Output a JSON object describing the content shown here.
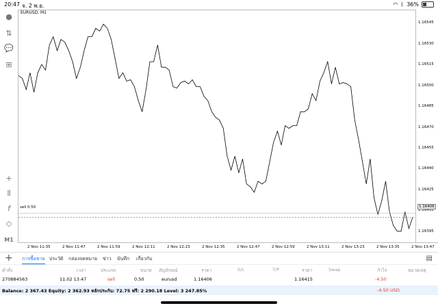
{
  "status": {
    "time": "20:47",
    "date": "จ. 2 พ.ย.",
    "battery": "36%"
  },
  "chart": {
    "symbol": "EURUSD, M1",
    "sell_label": "sell 0.50",
    "current_price": "1.16406"
  },
  "chart_data": {
    "type": "line",
    "x_labels": [
      "2 Nov 11:35",
      "2 Nov 11:47",
      "2 Nov 11:59",
      "2 Nov 12:11",
      "2 Nov 12:23",
      "2 Nov 12:35",
      "2 Nov 12:47",
      "2 Nov 12:59",
      "2 Nov 13:11",
      "2 Nov 13:23",
      "2 Nov 13:35",
      "2 Nov 13:47"
    ],
    "y_ticks": [
      "1.16545",
      "1.16530",
      "1.16515",
      "1.16500",
      "1.16485",
      "1.16470",
      "1.16455",
      "1.16440",
      "1.16425",
      "1.16410",
      "1.16395"
    ],
    "ylim": [
      1.16388,
      1.16555
    ],
    "values": [
      1.16508,
      1.16506,
      1.16498,
      1.1651,
      1.16496,
      1.1651,
      1.16516,
      1.16512,
      1.1653,
      1.16536,
      1.16526,
      1.16534,
      1.16532,
      1.16526,
      1.16518,
      1.16506,
      1.16514,
      1.16526,
      1.16536,
      1.16536,
      1.16542,
      1.1654,
      1.16545,
      1.16542,
      1.16534,
      1.1652,
      1.16506,
      1.1651,
      1.16504,
      1.16505,
      1.165,
      1.1649,
      1.16482,
      1.16498,
      1.16518,
      1.16518,
      1.1653,
      1.16514,
      1.16514,
      1.16512,
      1.165,
      1.16499,
      1.16503,
      1.16504,
      1.16502,
      1.16505,
      1.165,
      1.165,
      1.16493,
      1.1649,
      1.16482,
      1.16478,
      1.16476,
      1.1647,
      1.1645,
      1.1644,
      1.1645,
      1.16438,
      1.16448,
      1.1643,
      1.16428,
      1.16424,
      1.16432,
      1.1643,
      1.16432,
      1.16446,
      1.1646,
      1.16468,
      1.16458,
      1.16472,
      1.1647,
      1.16472,
      1.16472,
      1.16482,
      1.16482,
      1.16484,
      1.16495,
      1.1649,
      1.16504,
      1.1651,
      1.16518,
      1.16502,
      1.16514,
      1.16502,
      1.16503,
      1.16502,
      1.165,
      1.16476,
      1.16462,
      1.16446,
      1.1643,
      1.16448,
      1.1642,
      1.16408,
      1.16418,
      1.16432,
      1.1641,
      1.164,
      1.16396,
      1.16396,
      1.1641,
      1.16398,
      1.16406
    ]
  },
  "tabs": [
    {
      "label": "การซื้อขาย",
      "active": true
    },
    {
      "label": "ประวัติ"
    },
    {
      "label": "กล่องจดหมาย"
    },
    {
      "label": "ข่าว"
    },
    {
      "label": "บันทึก"
    },
    {
      "label": "เกี่ยวกับ"
    }
  ],
  "table_headers": [
    "คำสั่ง",
    "เวลา",
    "ประเภท",
    "ขนาด",
    "สัญลักษณ์",
    "ราคา",
    "S/L",
    "T/P",
    "ราคา",
    "Swap",
    "กำไร",
    "หมายเหตุ"
  ],
  "order": {
    "id": "270884563",
    "time": "11.02 13:47",
    "type": "sell",
    "size": "0.50",
    "symbol": "eurusd",
    "open_price": "1.16406",
    "current_price": "1.16415",
    "profit": "-4.50"
  },
  "balance": {
    "text": "Balance: 2 367.43 Equity: 2 362.93 หลักประกัน: 72.75 ฟรี: 2 290.18 Level: 3 247.85%",
    "profit": "-4.50",
    "currency": "USD"
  },
  "colors": {
    "accent": "#1a73e8",
    "loss": "#e53935",
    "balance_bg": "#eaf2fb"
  }
}
